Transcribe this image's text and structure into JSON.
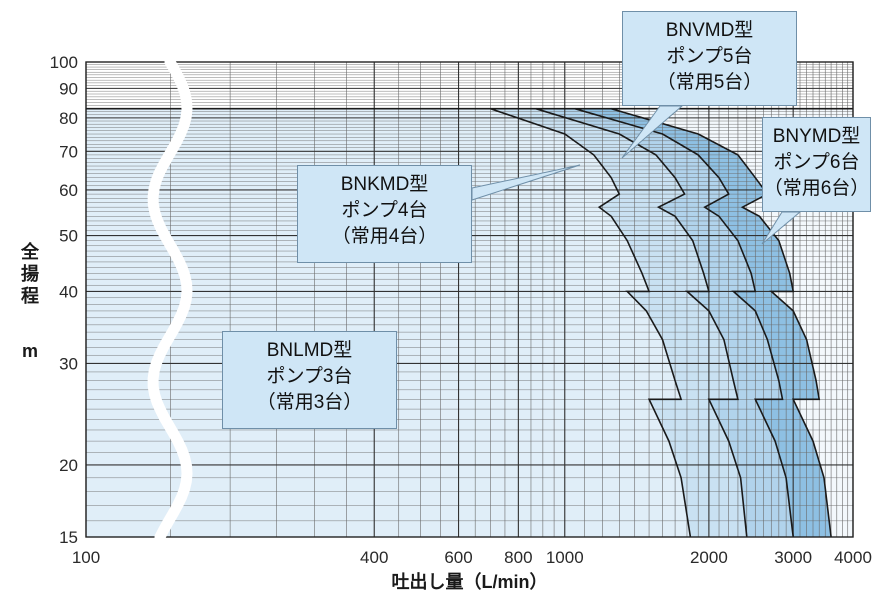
{
  "chart_data": {
    "type": "area",
    "x_scale": "log",
    "y_scale": "log",
    "xlim": [
      100,
      4000
    ],
    "ylim": [
      15,
      100
    ],
    "xlabel": "吐出し量（L/min）",
    "ylabel_lines": [
      "全",
      "揚",
      "程",
      "m"
    ],
    "x_ticks": [
      {
        "value": 100,
        "label": "100"
      },
      {
        "value": 400,
        "label": "400"
      },
      {
        "value": 600,
        "label": "600"
      },
      {
        "value": 800,
        "label": "800"
      },
      {
        "value": 1000,
        "label": "1000"
      },
      {
        "value": 2000,
        "label": "2000"
      },
      {
        "value": 3000,
        "label": "3000"
      },
      {
        "value": 4000,
        "label": "4000"
      }
    ],
    "y_ticks": [
      {
        "value": 15,
        "label": "15"
      },
      {
        "value": 20,
        "label": "20"
      },
      {
        "value": 30,
        "label": "30"
      },
      {
        "value": 40,
        "label": "40"
      },
      {
        "value": 50,
        "label": "50"
      },
      {
        "value": 60,
        "label": "60"
      },
      {
        "value": 70,
        "label": "70"
      },
      {
        "value": 80,
        "label": "80"
      },
      {
        "value": 90,
        "label": "90"
      },
      {
        "value": 100,
        "label": "100"
      }
    ],
    "axis_break": true,
    "max_head": 83,
    "series": [
      {
        "name": "BNLMD型",
        "pumps_line": "ポンプ3台",
        "duty_line": "（常用3台）",
        "color": "#e0eef8",
        "boundary": [
          [
            700,
            83
          ],
          [
            1000,
            75
          ],
          [
            1150,
            69
          ],
          [
            1250,
            63
          ],
          [
            1300,
            59
          ],
          [
            1180,
            56
          ],
          [
            1250,
            54
          ],
          [
            1350,
            49
          ],
          [
            1450,
            43
          ],
          [
            1500,
            40
          ],
          [
            1350,
            40
          ],
          [
            1480,
            37
          ],
          [
            1600,
            33
          ],
          [
            1700,
            28
          ],
          [
            1750,
            26
          ],
          [
            1500,
            26
          ],
          [
            1650,
            22
          ],
          [
            1750,
            19
          ],
          [
            1830,
            15
          ]
        ]
      },
      {
        "name": "BNKMD型",
        "pumps_line": "ポンプ4台",
        "duty_line": "（常用4台）",
        "color": "#c9e1f2",
        "boundary": [
          [
            870,
            83
          ],
          [
            1300,
            75
          ],
          [
            1550,
            69
          ],
          [
            1700,
            63
          ],
          [
            1780,
            59
          ],
          [
            1570,
            56
          ],
          [
            1700,
            54
          ],
          [
            1850,
            49
          ],
          [
            1950,
            43
          ],
          [
            2000,
            40
          ],
          [
            1800,
            40
          ],
          [
            2000,
            37
          ],
          [
            2150,
            33
          ],
          [
            2250,
            28
          ],
          [
            2300,
            26
          ],
          [
            2000,
            26
          ],
          [
            2200,
            22
          ],
          [
            2330,
            19
          ],
          [
            2400,
            15
          ]
        ]
      },
      {
        "name": "BNVMD型",
        "pumps_line": "ポンプ5台",
        "duty_line": "（常用5台）",
        "color": "#b1d3ec",
        "boundary": [
          [
            1050,
            83
          ],
          [
            1600,
            75
          ],
          [
            1900,
            69
          ],
          [
            2100,
            63
          ],
          [
            2200,
            59
          ],
          [
            1960,
            56
          ],
          [
            2100,
            54
          ],
          [
            2300,
            49
          ],
          [
            2450,
            43
          ],
          [
            2500,
            40
          ],
          [
            2250,
            40
          ],
          [
            2500,
            37
          ],
          [
            2650,
            33
          ],
          [
            2800,
            28
          ],
          [
            2850,
            26
          ],
          [
            2500,
            26
          ],
          [
            2750,
            22
          ],
          [
            2900,
            19
          ],
          [
            3000,
            15
          ]
        ]
      },
      {
        "name": "BNYMD型",
        "pumps_line": "ポンプ6台",
        "duty_line": "（常用6台）",
        "color": "#8ec0e3",
        "boundary": [
          [
            1250,
            83
          ],
          [
            1900,
            75
          ],
          [
            2300,
            69
          ],
          [
            2500,
            63
          ],
          [
            2650,
            59
          ],
          [
            2350,
            56
          ],
          [
            2550,
            54
          ],
          [
            2800,
            49
          ],
          [
            2950,
            43
          ],
          [
            3000,
            40
          ],
          [
            2700,
            40
          ],
          [
            3000,
            37
          ],
          [
            3200,
            33
          ],
          [
            3350,
            28
          ],
          [
            3400,
            26
          ],
          [
            3000,
            26
          ],
          [
            3300,
            22
          ],
          [
            3480,
            19
          ],
          [
            3600,
            15
          ]
        ]
      }
    ]
  },
  "colors": {
    "plot_bg": "#f3f8fc",
    "grid": "#6a6a6a",
    "curve": "#1a1a1a",
    "callout_bg": "#cfe6f6",
    "callout_border": "#6f8fa8",
    "break_band": "#ffffff"
  }
}
